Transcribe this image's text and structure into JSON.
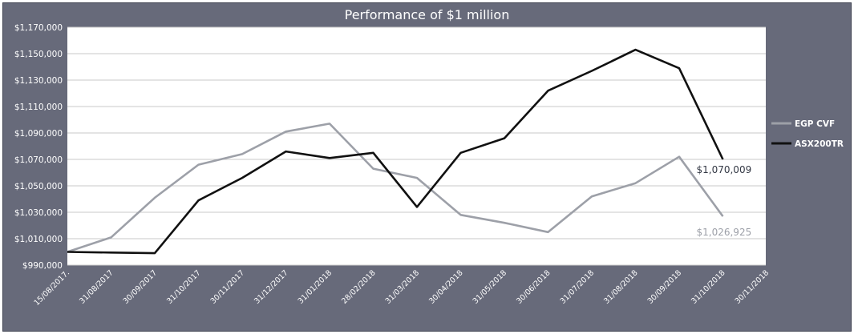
{
  "chart_data": {
    "type": "line",
    "title": "Performance of $1 million",
    "xlabel": "",
    "ylabel": "",
    "ylim": [
      990000,
      1170000
    ],
    "y_ticks": [
      990000,
      1010000,
      1030000,
      1050000,
      1070000,
      1090000,
      1110000,
      1130000,
      1150000,
      1170000
    ],
    "y_tick_labels": [
      "$990,000",
      "$1,010,000",
      "$1,030,000",
      "$1,050,000",
      "$1,070,000",
      "$1,090,000",
      "$1,110,000",
      "$1,130,000",
      "$1,150,000",
      "$1,170,000"
    ],
    "categories": [
      "15/08/2017",
      "31/08/2017",
      "30/09/2017",
      "31/10/2017",
      "30/11/2017",
      "31/12/2017",
      "31/01/2018",
      "28/02/2018",
      "31/03/2018",
      "30/04/2018",
      "31/05/2018",
      "30/06/2018",
      "31/07/2018",
      "31/08/2018",
      "30/09/2018",
      "31/10/2018",
      "30/11/2018"
    ],
    "category_labels": [
      "15/08/2017.",
      "31/08/2017",
      "30/09/2017",
      "31/10/2017",
      "30/11/2017",
      "31/12/2017",
      "31/01/2018",
      "28/02/2018",
      "31/03/2018",
      "30/04/2018",
      "31/05/2018",
      "30/06/2018",
      "31/07/2018",
      "31/08/2018",
      "30/09/2018",
      "31/10/2018",
      "30/11/2018"
    ],
    "series": [
      {
        "name": "EGP CVF",
        "color": "#9da0a8",
        "values": [
          1000000,
          1011000,
          1041000,
          1066000,
          1074000,
          1091000,
          1097000,
          1063000,
          1056000,
          1028000,
          1022000,
          1015000,
          1042000,
          1052000,
          1072000,
          1026925,
          null
        ],
        "end_label": "$1,026,925"
      },
      {
        "name": "ASX200TR",
        "color": "#111111",
        "values": [
          1000000,
          999500,
          999000,
          1039000,
          1056000,
          1076000,
          1071000,
          1075000,
          1034000,
          1075000,
          1086000,
          1122000,
          1137000,
          1153000,
          1139000,
          1070009,
          null
        ],
        "end_label": "$1,070,009"
      }
    ],
    "legend_position": "right",
    "grid": true,
    "background": "#676a7a",
    "plot_background": "#ffffff"
  }
}
